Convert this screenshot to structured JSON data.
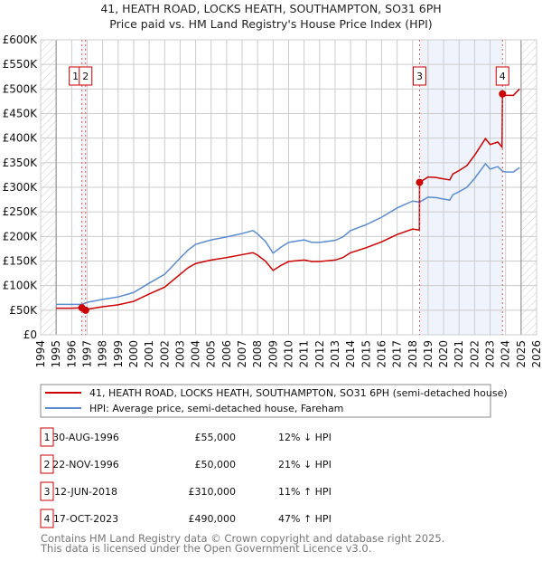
{
  "chart_data": {
    "type": "line",
    "title": "41, HEATH ROAD, LOCKS HEATH, SOUTHAMPTON, SO31 6PH",
    "subtitle": "Price paid vs. HM Land Registry's House Price Index (HPI)",
    "xlim": [
      1994,
      2026
    ],
    "ylim": [
      0,
      600000
    ],
    "x_ticks": [
      "1994",
      "1995",
      "1996",
      "1997",
      "1998",
      "1999",
      "2000",
      "2001",
      "2002",
      "2003",
      "2004",
      "2005",
      "2006",
      "2007",
      "2008",
      "2009",
      "2010",
      "2011",
      "2012",
      "2013",
      "2014",
      "2015",
      "2016",
      "2017",
      "2018",
      "2019",
      "2020",
      "2021",
      "2022",
      "2023",
      "2024",
      "2025",
      "2026"
    ],
    "y_ticks": [
      {
        "v": 0,
        "label": "£0"
      },
      {
        "v": 50000,
        "label": "£50K"
      },
      {
        "v": 100000,
        "label": "£100K"
      },
      {
        "v": 150000,
        "label": "£150K"
      },
      {
        "v": 200000,
        "label": "£200K"
      },
      {
        "v": 250000,
        "label": "£250K"
      },
      {
        "v": 300000,
        "label": "£300K"
      },
      {
        "v": 350000,
        "label": "£350K"
      },
      {
        "v": 400000,
        "label": "£400K"
      },
      {
        "v": 450000,
        "label": "£450K"
      },
      {
        "v": 500000,
        "label": "£500K"
      },
      {
        "v": 550000,
        "label": "£550K"
      },
      {
        "v": 600000,
        "label": "£600K"
      }
    ],
    "grid": true,
    "hatched_ranges": [
      [
        1994,
        1995
      ],
      [
        2025,
        2026
      ]
    ],
    "shaded_ranges": [
      [
        1996.66,
        1996.9
      ],
      [
        2018.45,
        2023.8
      ]
    ],
    "series": [
      {
        "name": "41, HEATH ROAD, LOCKS HEATH, SOUTHAMPTON, SO31 6PH (semi-detached house)",
        "color": "#cc0000",
        "points": [
          [
            1995,
            54
          ],
          [
            1996,
            54
          ],
          [
            1996.66,
            55
          ],
          [
            1996.9,
            50
          ],
          [
            1997,
            52
          ],
          [
            1998,
            57
          ],
          [
            1999,
            61
          ],
          [
            2000,
            68
          ],
          [
            2001,
            83
          ],
          [
            2002,
            97
          ],
          [
            2003,
            123
          ],
          [
            2003.5,
            136
          ],
          [
            2004,
            145
          ],
          [
            2005,
            152
          ],
          [
            2006,
            157
          ],
          [
            2007,
            163
          ],
          [
            2007.7,
            167
          ],
          [
            2008,
            162
          ],
          [
            2008.5,
            150
          ],
          [
            2009,
            131
          ],
          [
            2009.5,
            141
          ],
          [
            2010,
            149
          ],
          [
            2011,
            152
          ],
          [
            2011.5,
            149
          ],
          [
            2012,
            149
          ],
          [
            2013,
            152
          ],
          [
            2013.5,
            157
          ],
          [
            2014,
            167
          ],
          [
            2015,
            177
          ],
          [
            2016,
            189
          ],
          [
            2017,
            204
          ],
          [
            2018,
            215
          ],
          [
            2018.44,
            213
          ],
          [
            2018.45,
            310
          ],
          [
            2019,
            321
          ],
          [
            2019.5,
            320
          ],
          [
            2020,
            317
          ],
          [
            2020.4,
            315
          ],
          [
            2020.6,
            327
          ],
          [
            2021,
            334
          ],
          [
            2021.5,
            344
          ],
          [
            2022,
            365
          ],
          [
            2022.7,
            399
          ],
          [
            2023,
            387
          ],
          [
            2023.5,
            392
          ],
          [
            2023.77,
            382
          ],
          [
            2023.8,
            490
          ],
          [
            2024,
            487
          ],
          [
            2024.5,
            487
          ],
          [
            2024.9,
            500
          ]
        ]
      },
      {
        "name": "HPI: Average price, semi-detached house, Fareham",
        "color": "#5b8ccf",
        "points": [
          [
            1995,
            62
          ],
          [
            1996,
            62
          ],
          [
            1996.66,
            62
          ],
          [
            1997,
            66
          ],
          [
            1998,
            72
          ],
          [
            1999,
            77
          ],
          [
            2000,
            86
          ],
          [
            2001,
            105
          ],
          [
            2002,
            123
          ],
          [
            2003,
            156
          ],
          [
            2003.5,
            172
          ],
          [
            2004,
            184
          ],
          [
            2005,
            193
          ],
          [
            2006,
            199
          ],
          [
            2007,
            206
          ],
          [
            2007.7,
            212
          ],
          [
            2008,
            205
          ],
          [
            2008.5,
            190
          ],
          [
            2009,
            166
          ],
          [
            2009.5,
            178
          ],
          [
            2010,
            188
          ],
          [
            2011,
            193
          ],
          [
            2011.5,
            188
          ],
          [
            2012,
            188
          ],
          [
            2013,
            192
          ],
          [
            2013.5,
            199
          ],
          [
            2014,
            212
          ],
          [
            2015,
            224
          ],
          [
            2016,
            239
          ],
          [
            2017,
            258
          ],
          [
            2018,
            272
          ],
          [
            2018.45,
            270
          ],
          [
            2019,
            280
          ],
          [
            2019.5,
            279
          ],
          [
            2020,
            276
          ],
          [
            2020.4,
            274
          ],
          [
            2020.6,
            285
          ],
          [
            2021,
            291
          ],
          [
            2021.5,
            300
          ],
          [
            2022,
            318
          ],
          [
            2022.7,
            348
          ],
          [
            2023,
            337
          ],
          [
            2023.5,
            342
          ],
          [
            2023.8,
            333
          ],
          [
            2024,
            331
          ],
          [
            2024.5,
            331
          ],
          [
            2024.9,
            340
          ]
        ]
      }
    ],
    "values_unit": "thousands GBP",
    "sales": [
      {
        "id": "1",
        "x": 1996.66,
        "price": 55000,
        "date": "30-AUG-1996",
        "price_label": "£55,000",
        "hpi": "12% ↓ HPI"
      },
      {
        "id": "2",
        "x": 1996.9,
        "price": 50000,
        "date": "22-NOV-1996",
        "price_label": "£50,000",
        "hpi": "21% ↓ HPI"
      },
      {
        "id": "3",
        "x": 2018.45,
        "price": 310000,
        "date": "12-JUN-2018",
        "price_label": "£310,000",
        "hpi": "11% ↑ HPI"
      },
      {
        "id": "4",
        "x": 2023.8,
        "price": 490000,
        "date": "17-OCT-2023",
        "price_label": "£490,000",
        "hpi": "47% ↑ HPI"
      }
    ]
  },
  "footer": {
    "line1": "Contains HM Land Registry data © Crown copyright and database right 2025.",
    "line2": "This data is licensed under the Open Government Licence v3.0."
  }
}
